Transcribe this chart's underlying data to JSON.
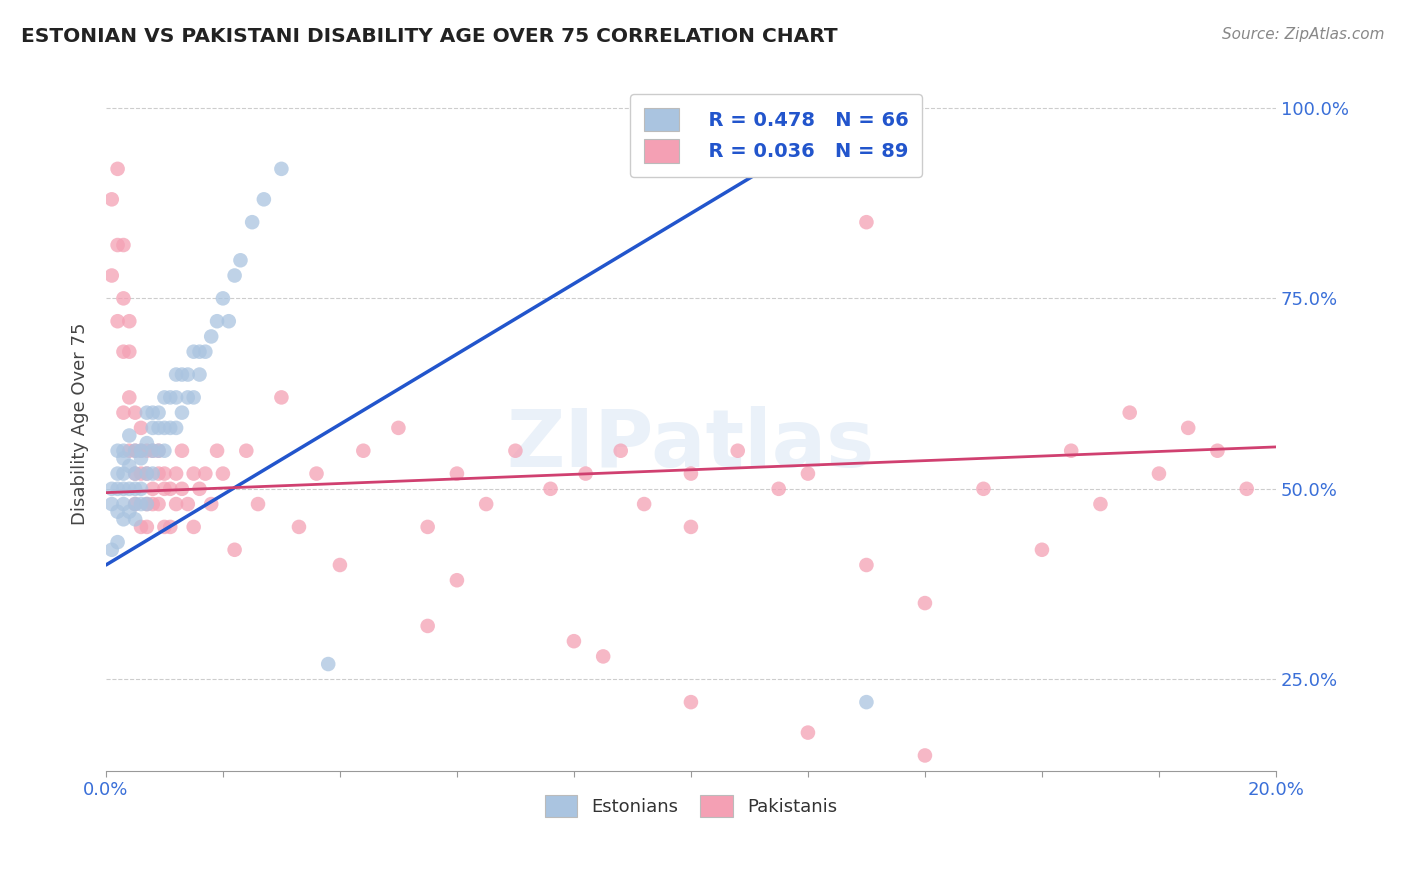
{
  "title": "ESTONIAN VS PAKISTANI DISABILITY AGE OVER 75 CORRELATION CHART",
  "source_text": "Source: ZipAtlas.com",
  "ylabel": "Disability Age Over 75",
  "xmin": 0.0,
  "xmax": 0.2,
  "ymin": 0.13,
  "ymax": 1.04,
  "y_ticks": [
    0.25,
    0.5,
    0.75,
    1.0
  ],
  "legend_r_estonian": "R = 0.478",
  "legend_n_estonian": "N = 66",
  "legend_r_pakistani": "R = 0.036",
  "legend_n_pakistani": "N = 89",
  "estonian_color": "#aac4e0",
  "pakistani_color": "#f4a0b4",
  "trend_estonian_color": "#2255cc",
  "trend_pakistani_color": "#d04070",
  "watermark": "ZIPatlas",
  "background_color": "#ffffff",
  "grid_color": "#c8c8c8",
  "estonian_x": [
    0.001,
    0.001,
    0.001,
    0.002,
    0.002,
    0.002,
    0.002,
    0.002,
    0.003,
    0.003,
    0.003,
    0.003,
    0.003,
    0.003,
    0.004,
    0.004,
    0.004,
    0.004,
    0.005,
    0.005,
    0.005,
    0.005,
    0.005,
    0.006,
    0.006,
    0.006,
    0.006,
    0.007,
    0.007,
    0.007,
    0.007,
    0.008,
    0.008,
    0.008,
    0.008,
    0.009,
    0.009,
    0.009,
    0.01,
    0.01,
    0.01,
    0.011,
    0.011,
    0.012,
    0.012,
    0.012,
    0.013,
    0.013,
    0.014,
    0.014,
    0.015,
    0.015,
    0.016,
    0.016,
    0.017,
    0.018,
    0.019,
    0.02,
    0.021,
    0.022,
    0.023,
    0.025,
    0.027,
    0.03,
    0.038,
    0.13
  ],
  "estonian_y": [
    0.5,
    0.48,
    0.42,
    0.52,
    0.55,
    0.47,
    0.5,
    0.43,
    0.54,
    0.5,
    0.48,
    0.55,
    0.46,
    0.52,
    0.53,
    0.5,
    0.57,
    0.47,
    0.52,
    0.48,
    0.55,
    0.5,
    0.46,
    0.54,
    0.5,
    0.48,
    0.55,
    0.56,
    0.52,
    0.6,
    0.48,
    0.55,
    0.6,
    0.52,
    0.58,
    0.55,
    0.6,
    0.58,
    0.58,
    0.62,
    0.55,
    0.62,
    0.58,
    0.62,
    0.65,
    0.58,
    0.65,
    0.6,
    0.65,
    0.62,
    0.68,
    0.62,
    0.68,
    0.65,
    0.68,
    0.7,
    0.72,
    0.75,
    0.72,
    0.78,
    0.8,
    0.85,
    0.88,
    0.92,
    0.27,
    0.22
  ],
  "pakistani_x": [
    0.001,
    0.001,
    0.002,
    0.002,
    0.002,
    0.003,
    0.003,
    0.003,
    0.003,
    0.004,
    0.004,
    0.004,
    0.004,
    0.005,
    0.005,
    0.005,
    0.005,
    0.006,
    0.006,
    0.006,
    0.006,
    0.007,
    0.007,
    0.007,
    0.007,
    0.008,
    0.008,
    0.008,
    0.009,
    0.009,
    0.009,
    0.01,
    0.01,
    0.01,
    0.011,
    0.011,
    0.012,
    0.012,
    0.013,
    0.013,
    0.014,
    0.015,
    0.015,
    0.016,
    0.017,
    0.018,
    0.019,
    0.02,
    0.022,
    0.024,
    0.026,
    0.03,
    0.033,
    0.036,
    0.04,
    0.044,
    0.05,
    0.055,
    0.06,
    0.065,
    0.07,
    0.076,
    0.082,
    0.088,
    0.092,
    0.1,
    0.108,
    0.115,
    0.12,
    0.13,
    0.14,
    0.15,
    0.16,
    0.165,
    0.17,
    0.175,
    0.18,
    0.185,
    0.19,
    0.195,
    0.06,
    0.08,
    0.1,
    0.12,
    0.14,
    0.055,
    0.085,
    0.1,
    0.13
  ],
  "pakistani_y": [
    0.88,
    0.78,
    0.82,
    0.72,
    0.92,
    0.75,
    0.68,
    0.82,
    0.6,
    0.62,
    0.55,
    0.68,
    0.72,
    0.52,
    0.55,
    0.6,
    0.48,
    0.52,
    0.58,
    0.45,
    0.55,
    0.52,
    0.48,
    0.55,
    0.45,
    0.5,
    0.55,
    0.48,
    0.52,
    0.48,
    0.55,
    0.5,
    0.45,
    0.52,
    0.5,
    0.45,
    0.52,
    0.48,
    0.5,
    0.55,
    0.48,
    0.52,
    0.45,
    0.5,
    0.52,
    0.48,
    0.55,
    0.52,
    0.42,
    0.55,
    0.48,
    0.62,
    0.45,
    0.52,
    0.4,
    0.55,
    0.58,
    0.45,
    0.52,
    0.48,
    0.55,
    0.5,
    0.52,
    0.55,
    0.48,
    0.52,
    0.55,
    0.5,
    0.52,
    0.85,
    0.35,
    0.5,
    0.42,
    0.55,
    0.48,
    0.6,
    0.52,
    0.58,
    0.55,
    0.5,
    0.38,
    0.3,
    0.22,
    0.18,
    0.15,
    0.32,
    0.28,
    0.45,
    0.4
  ],
  "trend_est_x0": 0.0,
  "trend_est_y0": 0.4,
  "trend_est_x1": 0.13,
  "trend_est_y1": 1.0,
  "trend_pak_x0": 0.0,
  "trend_pak_y0": 0.495,
  "trend_pak_x1": 0.2,
  "trend_pak_y1": 0.555
}
